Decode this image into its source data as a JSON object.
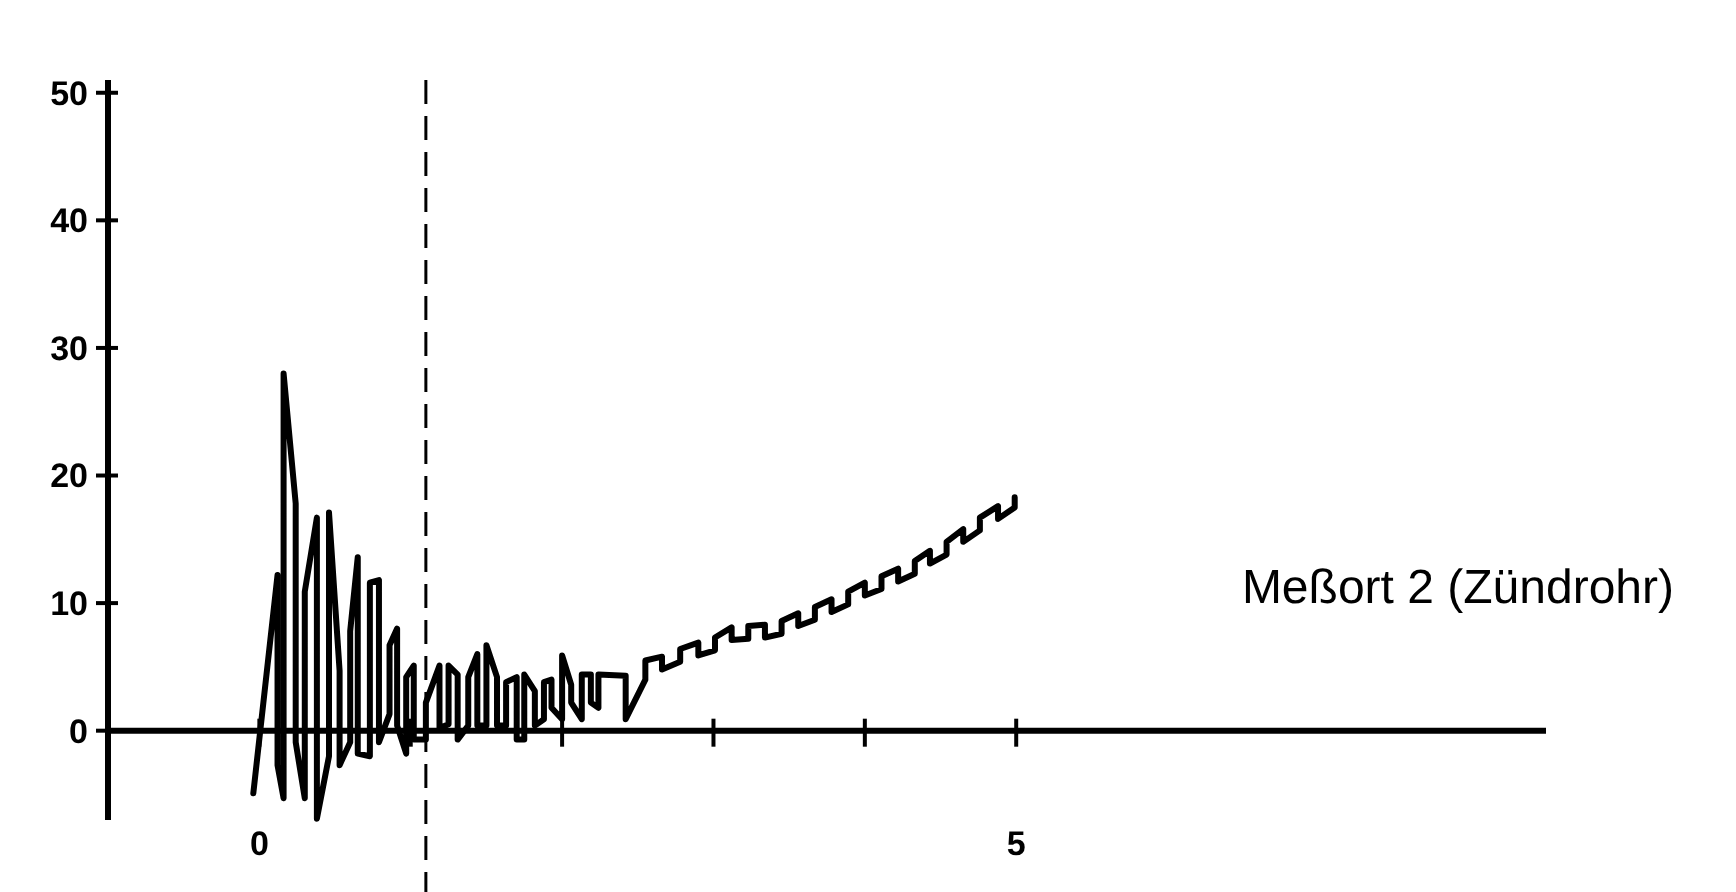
{
  "chart_data": {
    "type": "line",
    "x": [
      -0.04,
      0.12,
      0.12,
      0.16,
      0.16,
      0.24,
      0.24,
      0.3,
      0.3,
      0.38,
      0.38,
      0.46,
      0.46,
      0.53,
      0.53,
      0.6,
      0.6,
      0.65,
      0.65,
      0.73,
      0.73,
      0.79,
      0.79,
      0.86,
      0.86,
      0.91,
      0.91,
      0.97,
      0.97,
      1.02,
      1.02,
      1.1,
      1.1,
      1.19,
      1.19,
      1.25,
      1.25,
      1.31,
      1.31,
      1.38,
      1.38,
      1.44,
      1.44,
      1.5,
      1.5,
      1.57,
      1.57,
      1.63,
      1.63,
      1.7,
      1.7,
      1.75,
      1.75,
      1.82,
      1.82,
      1.88,
      1.88,
      1.93,
      1.93,
      2.0,
      2.0,
      2.06,
      2.06,
      2.13,
      2.13,
      2.19,
      2.19,
      2.24,
      2.24,
      2.42,
      2.42,
      2.55,
      2.55,
      2.66,
      2.66,
      2.78,
      2.78,
      2.9,
      2.9,
      3.01,
      3.01,
      3.12,
      3.12,
      3.23,
      3.23,
      3.34,
      3.34,
      3.45,
      3.45,
      3.56,
      3.56,
      3.67,
      3.67,
      3.78,
      3.78,
      3.89,
      3.89,
      4.0,
      4.0,
      4.11,
      4.11,
      4.22,
      4.22,
      4.33,
      4.33,
      4.43,
      4.43,
      4.54,
      4.54,
      4.65,
      4.65,
      4.76,
      4.76,
      4.88,
      4.88,
      4.99,
      4.99
    ],
    "series": [
      {
        "color": "#000000",
        "values": [
          -4.9,
          12.2,
          -2.7,
          -5.3,
          28,
          17.8,
          -0.9,
          -5.3,
          10.9,
          16.7,
          -6.9,
          -2,
          17.1,
          4.7,
          -2.7,
          -0.9,
          7.8,
          13.6,
          -1.8,
          -2,
          11.6,
          11.8,
          -0.9,
          1.3,
          6.7,
          8,
          0.4,
          -1.8,
          4.2,
          5.1,
          -0.7,
          -0.7,
          2.2,
          5.1,
          0.2,
          0.5,
          5.1,
          4.4,
          -0.7,
          0.4,
          4.2,
          6,
          0.4,
          0.4,
          6.7,
          4.2,
          0.4,
          0.4,
          3.8,
          4.2,
          -0.7,
          -0.7,
          4.4,
          3.1,
          0.4,
          0.9,
          3.8,
          4,
          1.8,
          0.9,
          5.9,
          3.6,
          2.2,
          0.9,
          4.4,
          4.4,
          2.2,
          1.8,
          4.4,
          4.3,
          0.9,
          4.0,
          5.5,
          5.8,
          4.8,
          5.4,
          6.4,
          6.9,
          5.9,
          6.3,
          7.3,
          8.1,
          7.1,
          7.2,
          8.2,
          8.3,
          7.3,
          7.6,
          8.6,
          9.2,
          8.2,
          8.7,
          9.7,
          10.3,
          9.3,
          9.9,
          10.9,
          11.6,
          10.6,
          11.1,
          12.1,
          12.7,
          11.7,
          12.3,
          13.3,
          14.1,
          13.1,
          13.8,
          14.8,
          15.8,
          14.8,
          15.7,
          16.7,
          17.6,
          16.6,
          17.5,
          18.3
        ]
      }
    ],
    "xlim": [
      -1,
      8.5
    ],
    "xticks": [
      0,
      {
        "value": 1,
        "label": null
      },
      {
        "value": 2,
        "label": null
      },
      {
        "value": 3,
        "label": null
      },
      {
        "value": 4,
        "label": null
      },
      5
    ],
    "ylim": [
      -7,
      51
    ],
    "yticks": [
      0,
      10,
      20,
      30,
      40,
      50
    ],
    "ref_lines": [
      {
        "axis": "x",
        "value": 1.1,
        "line_style": "dashed",
        "color": "#000000"
      }
    ],
    "annotations": [
      "Meßort 2 (Zündrohr)"
    ],
    "line_style": "solid",
    "marker": "none"
  }
}
